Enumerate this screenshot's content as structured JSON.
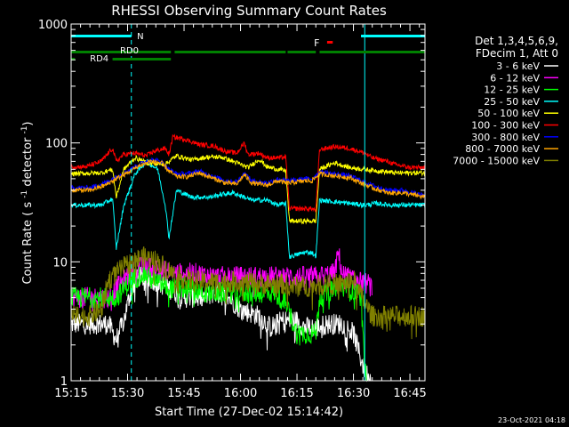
{
  "chart_data": {
    "type": "line",
    "title": "RHESSI Observing Summary Count Rates",
    "xlabel": "Start Time (27-Dec-02 15:14:42)",
    "ylabel_main": "Count Rate (",
    "ylabel_s": "s",
    "ylabel_exp": "-1",
    "ylabel_unit": " detector",
    "ylabel_close": ")",
    "yscale": "log",
    "ylim": [
      1,
      1000
    ],
    "xlim_minutes": [
      0,
      94
    ],
    "x_tick_labels": [
      "15:15",
      "15:30",
      "15:45",
      "16:00",
      "16:15",
      "16:30",
      "16:45"
    ],
    "x_tick_minutes": [
      0,
      15,
      30,
      45,
      60,
      75,
      90
    ],
    "y_tick_labels": [
      "1",
      "10",
      "100",
      "1000"
    ],
    "y_tick_values": [
      1,
      10,
      100,
      1000
    ],
    "legend_header": [
      "Det 1,3,4,5,6,9,",
      "FDecim 1, Att 0"
    ],
    "footer": "23-Oct-2021 04:18",
    "series": [
      {
        "name": "3 - 6 keV",
        "color": "#ffffff",
        "knots": [
          [
            0,
            3
          ],
          [
            10,
            3
          ],
          [
            12,
            2.2
          ],
          [
            14,
            3.2
          ],
          [
            16,
            6
          ],
          [
            18,
            7.5
          ],
          [
            22,
            7
          ],
          [
            26,
            6
          ],
          [
            30,
            5
          ],
          [
            35,
            5
          ],
          [
            38,
            5.5
          ],
          [
            42,
            5
          ],
          [
            45,
            4
          ],
          [
            50,
            3.5
          ],
          [
            53,
            2.8
          ],
          [
            56,
            3.2
          ],
          [
            60,
            3.2
          ],
          [
            62,
            2.8
          ],
          [
            65,
            2.8
          ],
          [
            68,
            3
          ],
          [
            72,
            3
          ],
          [
            75,
            2.5
          ],
          [
            78,
            1.2
          ],
          [
            80,
            1
          ]
        ]
      },
      {
        "name": "6 - 12 keV",
        "color": "#ff00ff",
        "knots": [
          [
            0,
            5
          ],
          [
            10,
            5
          ],
          [
            13,
            6.5
          ],
          [
            16,
            8
          ],
          [
            18,
            9
          ],
          [
            21,
            9
          ],
          [
            24,
            8.5
          ],
          [
            28,
            8
          ],
          [
            33,
            8
          ],
          [
            38,
            7.5
          ],
          [
            45,
            7.5
          ],
          [
            50,
            7.5
          ],
          [
            55,
            7.5
          ],
          [
            60,
            7.5
          ],
          [
            65,
            7.5
          ],
          [
            70,
            8
          ],
          [
            71,
            12
          ],
          [
            72,
            8
          ],
          [
            75,
            7
          ],
          [
            79,
            6.5
          ],
          [
            80,
            6
          ]
        ]
      },
      {
        "name": "12 - 25 keV",
        "color": "#00ff00",
        "knots": [
          [
            0,
            5
          ],
          [
            12,
            5
          ],
          [
            16,
            7
          ],
          [
            19,
            8
          ],
          [
            22,
            7
          ],
          [
            26,
            6
          ],
          [
            30,
            6
          ],
          [
            36,
            5.5
          ],
          [
            42,
            5.5
          ],
          [
            48,
            5.5
          ],
          [
            54,
            5.5
          ],
          [
            57,
            4.5
          ],
          [
            60,
            2.5
          ],
          [
            63,
            2.5
          ],
          [
            65,
            2.5
          ],
          [
            66,
            5
          ],
          [
            70,
            6
          ],
          [
            74,
            6
          ],
          [
            77,
            5
          ],
          [
            78,
            1.2
          ],
          [
            79,
            1
          ]
        ]
      },
      {
        "name": "25 - 50 keV",
        "color": "#00ffff",
        "knots": [
          [
            0,
            30
          ],
          [
            8,
            30
          ],
          [
            11,
            34
          ],
          [
            12,
            13
          ],
          [
            14,
            30
          ],
          [
            17,
            55
          ],
          [
            20,
            70
          ],
          [
            23,
            60
          ],
          [
            25,
            30
          ],
          [
            26,
            16
          ],
          [
            28,
            40
          ],
          [
            32,
            35
          ],
          [
            37,
            35
          ],
          [
            40,
            37
          ],
          [
            43,
            38
          ],
          [
            45,
            36
          ],
          [
            48,
            33
          ],
          [
            52,
            33
          ],
          [
            55,
            30
          ],
          [
            57,
            31
          ],
          [
            58,
            11
          ],
          [
            62,
            12
          ],
          [
            64,
            12
          ],
          [
            65,
            11
          ],
          [
            66,
            33
          ],
          [
            70,
            32
          ],
          [
            74,
            31
          ],
          [
            78,
            30
          ],
          [
            81,
            31
          ],
          [
            85,
            30
          ],
          [
            90,
            30
          ],
          [
            94,
            30
          ]
        ]
      },
      {
        "name": "50 - 100 keV",
        "color": "#ffff00",
        "knots": [
          [
            0,
            55
          ],
          [
            8,
            56
          ],
          [
            11,
            60
          ],
          [
            12,
            35
          ],
          [
            14,
            60
          ],
          [
            17,
            75
          ],
          [
            20,
            68
          ],
          [
            25,
            66
          ],
          [
            28,
            78
          ],
          [
            32,
            72
          ],
          [
            36,
            76
          ],
          [
            40,
            76
          ],
          [
            44,
            68
          ],
          [
            47,
            62
          ],
          [
            50,
            73
          ],
          [
            52,
            63
          ],
          [
            55,
            60
          ],
          [
            57,
            58
          ],
          [
            58,
            22
          ],
          [
            62,
            22
          ],
          [
            64,
            22
          ],
          [
            65,
            22
          ],
          [
            66,
            60
          ],
          [
            70,
            68
          ],
          [
            74,
            62
          ],
          [
            78,
            60
          ],
          [
            82,
            58
          ],
          [
            86,
            56
          ],
          [
            90,
            56
          ],
          [
            94,
            56
          ]
        ]
      },
      {
        "name": "100 - 300 keV",
        "color": "#ff0000",
        "knots": [
          [
            0,
            63
          ],
          [
            4,
            63
          ],
          [
            8,
            70
          ],
          [
            11,
            90
          ],
          [
            12,
            70
          ],
          [
            14,
            80
          ],
          [
            17,
            82
          ],
          [
            20,
            78
          ],
          [
            22,
            85
          ],
          [
            25,
            90
          ],
          [
            26,
            80
          ],
          [
            27,
            112
          ],
          [
            30,
            108
          ],
          [
            34,
            97
          ],
          [
            38,
            94
          ],
          [
            41,
            85
          ],
          [
            44,
            82
          ],
          [
            46,
            100
          ],
          [
            47,
            80
          ],
          [
            50,
            82
          ],
          [
            52,
            75
          ],
          [
            55,
            75
          ],
          [
            57,
            76
          ],
          [
            58,
            28
          ],
          [
            62,
            28
          ],
          [
            64,
            28
          ],
          [
            65,
            27
          ],
          [
            66,
            88
          ],
          [
            70,
            93
          ],
          [
            74,
            90
          ],
          [
            78,
            82
          ],
          [
            80,
            75
          ],
          [
            84,
            70
          ],
          [
            86,
            66
          ],
          [
            90,
            62
          ],
          [
            94,
            62
          ]
        ]
      },
      {
        "name": "300 - 800 keV",
        "color": "#0000ff",
        "knots": [
          [
            0,
            42
          ],
          [
            5,
            42
          ],
          [
            9,
            46
          ],
          [
            12,
            52
          ],
          [
            15,
            58
          ],
          [
            18,
            66
          ],
          [
            21,
            72
          ],
          [
            24,
            70
          ],
          [
            26,
            60
          ],
          [
            28,
            55
          ],
          [
            31,
            55
          ],
          [
            34,
            58
          ],
          [
            38,
            52
          ],
          [
            41,
            48
          ],
          [
            44,
            47
          ],
          [
            46,
            56
          ],
          [
            48,
            48
          ],
          [
            52,
            46
          ],
          [
            55,
            50
          ],
          [
            57,
            48
          ],
          [
            58,
            48
          ],
          [
            62,
            50
          ],
          [
            64,
            50
          ],
          [
            66,
            57
          ],
          [
            70,
            55
          ],
          [
            74,
            53
          ],
          [
            77,
            48
          ],
          [
            80,
            44
          ],
          [
            84,
            40
          ],
          [
            88,
            40
          ],
          [
            94,
            36
          ]
        ]
      },
      {
        "name": "800 - 7000 keV",
        "color": "#ffa500",
        "knots": [
          [
            0,
            40
          ],
          [
            5,
            40
          ],
          [
            9,
            44
          ],
          [
            12,
            50
          ],
          [
            15,
            56
          ],
          [
            18,
            64
          ],
          [
            21,
            70
          ],
          [
            24,
            68
          ],
          [
            26,
            58
          ],
          [
            28,
            52
          ],
          [
            31,
            52
          ],
          [
            34,
            56
          ],
          [
            38,
            50
          ],
          [
            41,
            46
          ],
          [
            44,
            45
          ],
          [
            46,
            54
          ],
          [
            48,
            46
          ],
          [
            52,
            44
          ],
          [
            55,
            48
          ],
          [
            57,
            46
          ],
          [
            58,
            46
          ],
          [
            62,
            48
          ],
          [
            64,
            48
          ],
          [
            66,
            55
          ],
          [
            70,
            53
          ],
          [
            74,
            51
          ],
          [
            77,
            46
          ],
          [
            80,
            42
          ],
          [
            84,
            38
          ],
          [
            88,
            38
          ],
          [
            94,
            35
          ]
        ]
      },
      {
        "name": "7000 - 15000 keV",
        "color": "#808000",
        "knots": [
          [
            0,
            3.5
          ],
          [
            5,
            3.5
          ],
          [
            8,
            4
          ],
          [
            10,
            7
          ],
          [
            13,
            8.5
          ],
          [
            16,
            10
          ],
          [
            19,
            11
          ],
          [
            22,
            10.5
          ],
          [
            25,
            9
          ],
          [
            28,
            7.5
          ],
          [
            33,
            6.8
          ],
          [
            38,
            6.8
          ],
          [
            44,
            6.8
          ],
          [
            50,
            6.5
          ],
          [
            56,
            6.5
          ],
          [
            60,
            6.2
          ],
          [
            64,
            6.2
          ],
          [
            68,
            6.5
          ],
          [
            72,
            6.5
          ],
          [
            75,
            7
          ],
          [
            78,
            4.5
          ],
          [
            80,
            3.5
          ],
          [
            85,
            3.5
          ],
          [
            90,
            3.5
          ],
          [
            94,
            3.5
          ]
        ]
      }
    ],
    "annotations": {
      "N": "N",
      "F": "F",
      "RD0": "RD0",
      "RD4": "RD4",
      "N_bar_minutes": [
        [
          0,
          16
        ],
        [
          77,
          94
        ]
      ],
      "F_bar_minutes": [
        [
          68,
          69.5
        ]
      ],
      "RD0_bar_minutes": [
        [
          0,
          26.5
        ],
        [
          27.5,
          57
        ],
        [
          57.5,
          65
        ],
        [
          66,
          94
        ]
      ],
      "RD4_bar_minutes": [
        [
          0,
          1
        ],
        [
          11,
          26.5
        ]
      ],
      "vlines_solid_minutes": [
        0,
        78
      ],
      "vlines_dashed_minutes": [
        16,
        94
      ]
    }
  }
}
